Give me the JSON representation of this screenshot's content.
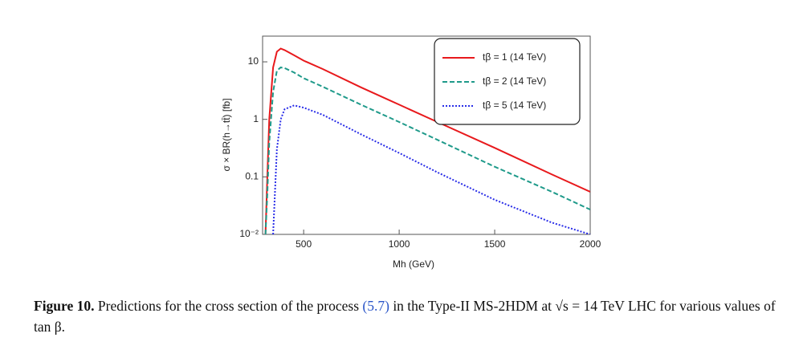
{
  "chart_data": {
    "type": "line",
    "x_label": "Mh (GeV)",
    "y_label": "σ × BR(h→tt̄) [fb]",
    "x": [
      300,
      310,
      320,
      340,
      360,
      380,
      400,
      450,
      500,
      600,
      800,
      1000,
      1200,
      1500,
      1800,
      2000
    ],
    "series": [
      {
        "name": "tβ = 1 (14 TeV)",
        "color": "#e8191c",
        "dash": "solid",
        "values": [
          0.01,
          0.1,
          1,
          8,
          15,
          17,
          16,
          13,
          10.5,
          7.5,
          3.6,
          1.8,
          0.9,
          0.32,
          0.11,
          0.055
        ]
      },
      {
        "name": "tβ = 2 (14 TeV)",
        "color": "#1f9a8a",
        "dash": "dashed",
        "values": [
          0.01,
          0.05,
          0.4,
          3,
          7,
          8,
          7.8,
          6.5,
          5.2,
          3.7,
          1.8,
          0.9,
          0.44,
          0.15,
          0.055,
          0.027
        ]
      },
      {
        "name": "tβ = 5 (14 TeV)",
        "color": "#2a2ee8",
        "dash": "dotted",
        "values": [
          null,
          null,
          null,
          0.01,
          0.3,
          1,
          1.5,
          1.75,
          1.6,
          1.2,
          0.55,
          0.26,
          0.12,
          0.04,
          0.016,
          0.01
        ]
      }
    ],
    "xlim": [
      285,
      2000
    ],
    "xticks": [
      500,
      1000,
      1500,
      2000
    ],
    "ylim": [
      0.01,
      28
    ],
    "yticks": [
      {
        "value": 0.01,
        "label": "10⁻²"
      },
      0.1,
      1,
      10
    ],
    "y_scale": "log",
    "legend": "top-right"
  },
  "caption": {
    "label": "Figure 10.",
    "text_before": "Predictions for the cross section of the process",
    "ref": "(5.7)",
    "text_after": "in the Type-II MS-2HDM at √s = 14 TeV LHC for various values of tan β."
  }
}
